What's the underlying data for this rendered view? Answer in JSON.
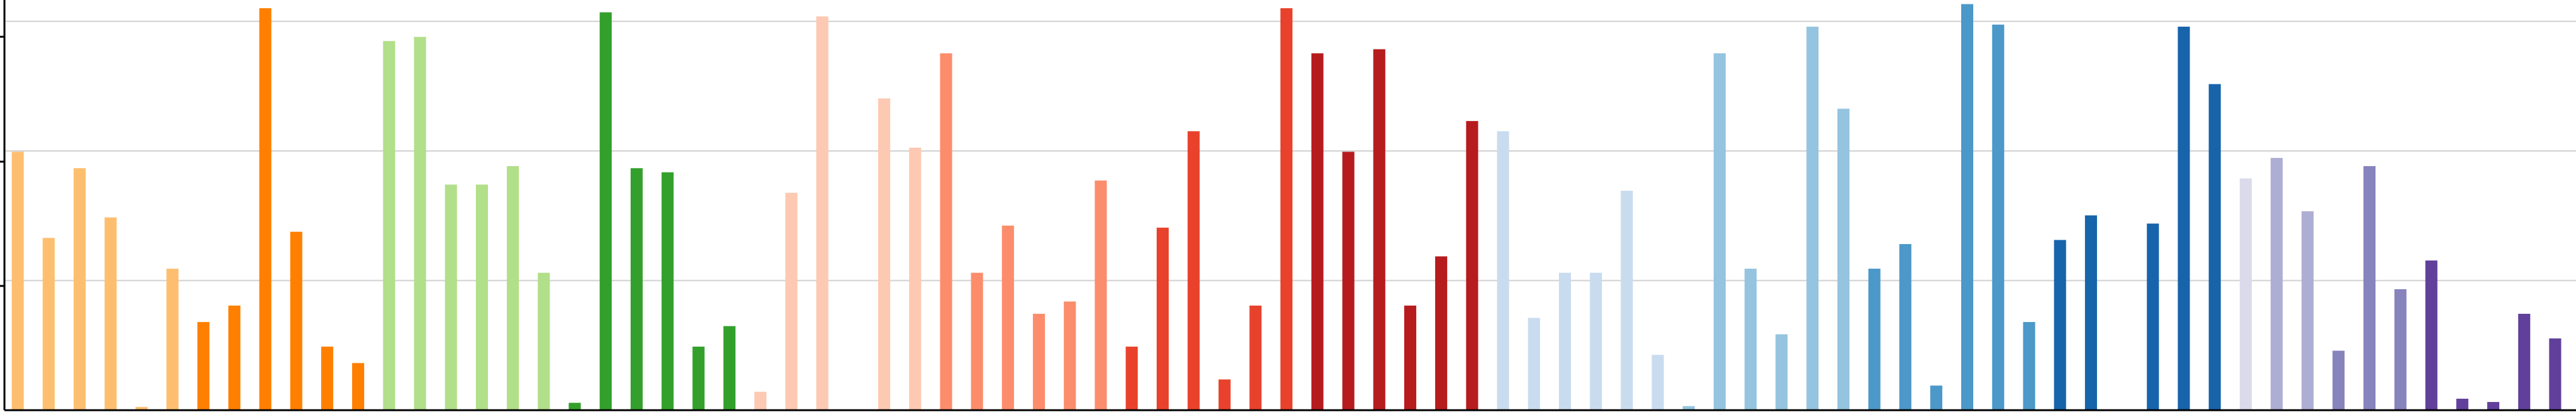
{
  "chart_data": {
    "type": "bar",
    "title": "",
    "xlabel": "",
    "ylabel": "",
    "grid": true,
    "ylim": [
      0,
      10
    ],
    "y_grid_values": [
      3.16,
      6.32,
      9.48
    ],
    "x_tick_labels_visible": false,
    "y_tick_labels_visible": false,
    "bars": [
      {
        "value": 6.3,
        "color": "#fdbf6f"
      },
      {
        "value": 4.2,
        "color": "#fdbf6f"
      },
      {
        "value": 5.9,
        "color": "#fdbf6f"
      },
      {
        "value": 4.7,
        "color": "#fdbf6f"
      },
      {
        "value": 0.08,
        "color": "#fdbf6f"
      },
      {
        "value": 3.45,
        "color": "#fdbf6f"
      },
      {
        "value": 2.15,
        "color": "#ff7f00"
      },
      {
        "value": 2.55,
        "color": "#ff7f00"
      },
      {
        "value": 9.8,
        "color": "#ff7f00"
      },
      {
        "value": 4.35,
        "color": "#ff7f00"
      },
      {
        "value": 1.55,
        "color": "#ff7f00"
      },
      {
        "value": 1.15,
        "color": "#ff7f00"
      },
      {
        "value": 9.0,
        "color": "#b2df8a"
      },
      {
        "value": 9.1,
        "color": "#b2df8a"
      },
      {
        "value": 5.5,
        "color": "#b2df8a"
      },
      {
        "value": 5.5,
        "color": "#b2df8a"
      },
      {
        "value": 5.95,
        "color": "#b2df8a"
      },
      {
        "value": 3.35,
        "color": "#b2df8a"
      },
      {
        "value": 0.18,
        "color": "#33a02c"
      },
      {
        "value": 9.7,
        "color": "#33a02c"
      },
      {
        "value": 5.9,
        "color": "#33a02c"
      },
      {
        "value": 5.8,
        "color": "#33a02c"
      },
      {
        "value": 1.55,
        "color": "#33a02c"
      },
      {
        "value": 2.05,
        "color": "#33a02c"
      },
      {
        "value": 0.45,
        "color": "#fdc9b2"
      },
      {
        "value": 5.3,
        "color": "#fdc9b2"
      },
      {
        "value": 9.6,
        "color": "#fdc9b2"
      },
      {
        "value": 0.0,
        "color": "#fdc9b2"
      },
      {
        "value": 7.6,
        "color": "#fdc9b2"
      },
      {
        "value": 6.4,
        "color": "#fdc9b2"
      },
      {
        "value": 8.7,
        "color": "#fc8d6c"
      },
      {
        "value": 3.35,
        "color": "#fc8d6c"
      },
      {
        "value": 4.5,
        "color": "#fc8d6c"
      },
      {
        "value": 2.35,
        "color": "#fc8d6c"
      },
      {
        "value": 2.65,
        "color": "#fc8d6c"
      },
      {
        "value": 5.6,
        "color": "#fc8d6c"
      },
      {
        "value": 1.55,
        "color": "#e9422c"
      },
      {
        "value": 4.45,
        "color": "#e9422c"
      },
      {
        "value": 6.8,
        "color": "#e9422c"
      },
      {
        "value": 0.75,
        "color": "#e9422c"
      },
      {
        "value": 2.55,
        "color": "#e9422c"
      },
      {
        "value": 9.8,
        "color": "#e9422c"
      },
      {
        "value": 8.7,
        "color": "#b61c1e"
      },
      {
        "value": 6.3,
        "color": "#b61c1e"
      },
      {
        "value": 8.8,
        "color": "#b61c1e"
      },
      {
        "value": 2.55,
        "color": "#b61c1e"
      },
      {
        "value": 3.75,
        "color": "#b61c1e"
      },
      {
        "value": 7.05,
        "color": "#b61c1e"
      },
      {
        "value": 6.8,
        "color": "#c9dcef"
      },
      {
        "value": 2.25,
        "color": "#c9dcef"
      },
      {
        "value": 3.35,
        "color": "#c9dcef"
      },
      {
        "value": 3.35,
        "color": "#c9dcef"
      },
      {
        "value": 5.35,
        "color": "#c9dcef"
      },
      {
        "value": 1.35,
        "color": "#c9dcef"
      },
      {
        "value": 0.1,
        "color": "#94c4df"
      },
      {
        "value": 8.7,
        "color": "#94c4df"
      },
      {
        "value": 3.45,
        "color": "#94c4df"
      },
      {
        "value": 1.85,
        "color": "#94c4df"
      },
      {
        "value": 9.35,
        "color": "#94c4df"
      },
      {
        "value": 7.35,
        "color": "#94c4df"
      },
      {
        "value": 3.45,
        "color": "#4b98c9"
      },
      {
        "value": 4.05,
        "color": "#4b98c9"
      },
      {
        "value": 0.6,
        "color": "#4b98c9"
      },
      {
        "value": 9.9,
        "color": "#4b98c9"
      },
      {
        "value": 9.4,
        "color": "#4b98c9"
      },
      {
        "value": 2.15,
        "color": "#4b98c9"
      },
      {
        "value": 4.15,
        "color": "#1764ab"
      },
      {
        "value": 4.75,
        "color": "#1764ab"
      },
      {
        "value": 0.0,
        "color": "#1764ab"
      },
      {
        "value": 4.55,
        "color": "#1764ab"
      },
      {
        "value": 9.35,
        "color": "#1764ab"
      },
      {
        "value": 7.95,
        "color": "#1764ab"
      },
      {
        "value": 5.65,
        "color": "#dadaeb"
      },
      {
        "value": 6.15,
        "color": "#aeadd3"
      },
      {
        "value": 4.85,
        "color": "#aeadd3"
      },
      {
        "value": 1.45,
        "color": "#8683bd"
      },
      {
        "value": 5.95,
        "color": "#8683bd"
      },
      {
        "value": 2.95,
        "color": "#8683bd"
      },
      {
        "value": 3.65,
        "color": "#61409b"
      },
      {
        "value": 0.28,
        "color": "#61409b"
      },
      {
        "value": 0.2,
        "color": "#61409b"
      },
      {
        "value": 2.35,
        "color": "#61409b"
      },
      {
        "value": 1.75,
        "color": "#61409b"
      }
    ]
  }
}
